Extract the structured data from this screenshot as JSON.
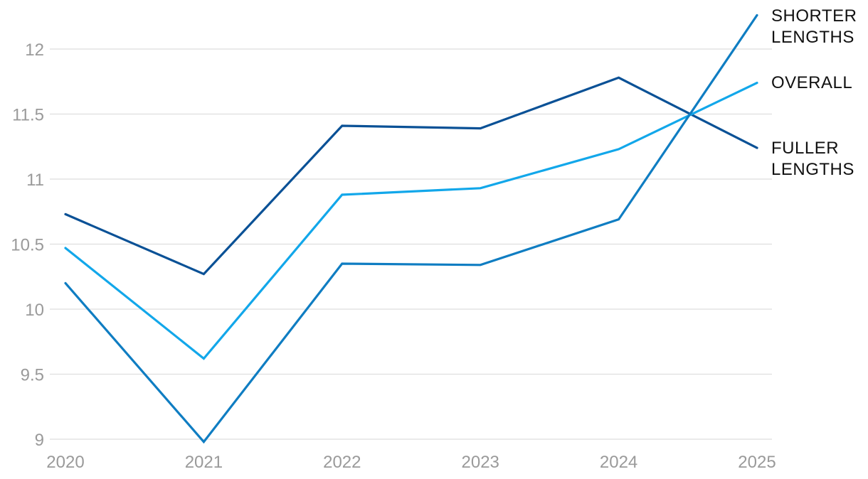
{
  "chart_data": {
    "type": "line",
    "title": "",
    "xlabel": "",
    "ylabel": "",
    "categories": [
      "2020",
      "2021",
      "2022",
      "2023",
      "2024",
      "2025"
    ],
    "y_ticks": [
      "9",
      "9.5",
      "10",
      "10.5",
      "11",
      "11.5",
      "12"
    ],
    "ylim": [
      9,
      12.4
    ],
    "grid": true,
    "legend": "direct labels at right end of lines",
    "series": [
      {
        "name": "FULLER LENGTHS",
        "label_lines": [
          "FULLER",
          "LENGTHS"
        ],
        "color": "#0a5196",
        "values": [
          10.73,
          10.27,
          11.41,
          11.39,
          11.78,
          11.24
        ]
      },
      {
        "name": "OVERALL",
        "label_lines": [
          "OVERALL"
        ],
        "color": "#12a7ea",
        "values": [
          10.47,
          9.62,
          10.88,
          10.93,
          11.23,
          11.74
        ]
      },
      {
        "name": "SHORTER LENGTHS",
        "label_lines": [
          "SHORTER",
          "LENGTHS"
        ],
        "color": "#0f7dc2",
        "values": [
          10.2,
          8.98,
          10.35,
          10.34,
          10.69,
          12.26
        ]
      }
    ]
  }
}
